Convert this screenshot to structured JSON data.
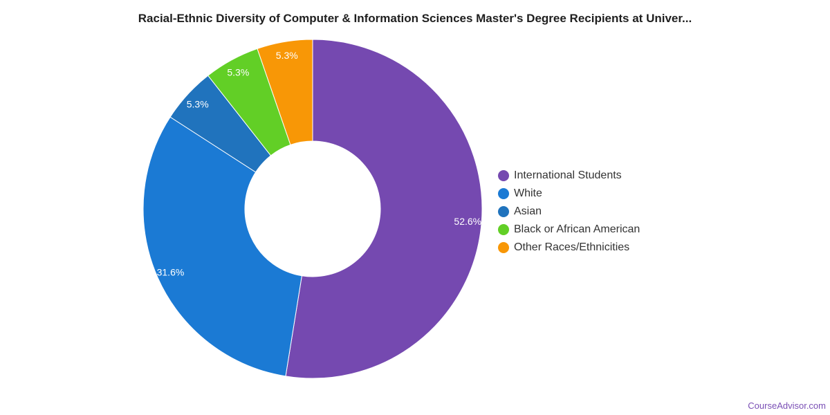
{
  "chart_data": {
    "type": "pie",
    "title": "Racial-Ethnic Diversity of Computer & Information Sciences Master's Degree Recipients at Univer...",
    "donut": true,
    "legend_position": "right",
    "slices": [
      {
        "name": "International Students",
        "value": 52.6,
        "label": "52.6%",
        "color": "#7549b0"
      },
      {
        "name": "White",
        "value": 31.6,
        "label": "31.6%",
        "color": "#1b7ad4"
      },
      {
        "name": "Asian",
        "value": 5.3,
        "label": "5.3%",
        "color": "#2073bd"
      },
      {
        "name": "Black or African American",
        "value": 5.3,
        "label": "5.3%",
        "color": "#62cf26"
      },
      {
        "name": "Other Races/Ethnicities",
        "value": 5.3,
        "label": "5.3%",
        "color": "#f89706"
      }
    ]
  },
  "watermark": "CourseAdvisor.com"
}
